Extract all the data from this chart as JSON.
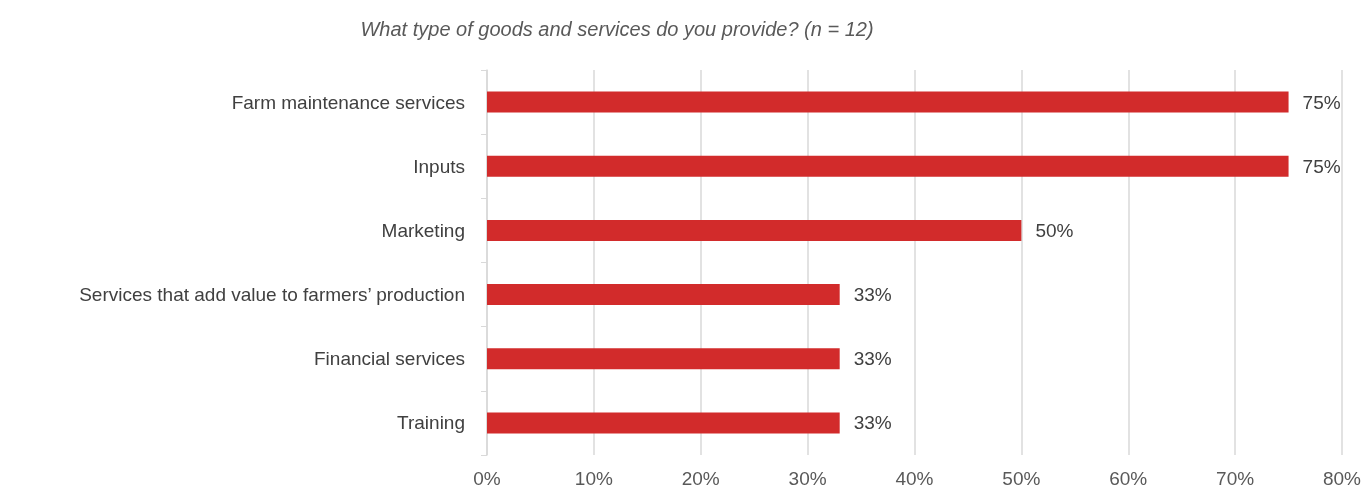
{
  "chart_data": {
    "type": "bar",
    "orientation": "horizontal",
    "title": "What type of goods and services do you provide? (n = 12)",
    "categories": [
      "Farm maintenance services",
      "Inputs",
      "Marketing",
      "Services that add value to farmers’ production",
      "Financial services",
      "Training"
    ],
    "values": [
      75,
      75,
      50,
      33,
      33,
      33
    ],
    "value_labels": [
      "75%",
      "75%",
      "50%",
      "33%",
      "33%",
      "33%"
    ],
    "color": "#d22b2b",
    "xlim": [
      0,
      80
    ],
    "xticks": [
      {
        "value": 0,
        "label": "0%"
      },
      {
        "value": 10,
        "label": "10%"
      },
      {
        "value": 20,
        "label": "20%"
      },
      {
        "value": 30,
        "label": "30%"
      },
      {
        "value": 40,
        "label": "40%"
      },
      {
        "value": 50,
        "label": "50%"
      },
      {
        "value": 60,
        "label": "60%"
      },
      {
        "value": 70,
        "label": "70%"
      },
      {
        "value": 80,
        "label": "80%"
      }
    ],
    "grid": "x"
  }
}
